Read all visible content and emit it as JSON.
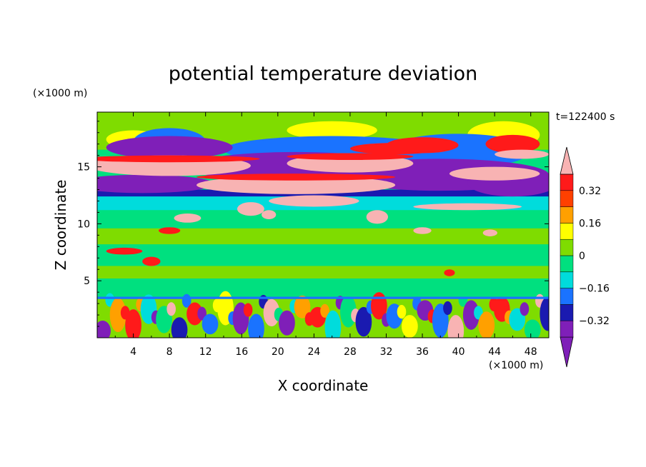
{
  "chart_data": {
    "type": "heatmap",
    "title": "potential temperature deviation",
    "xlabel": "X coordinate",
    "ylabel": "Z coordinate",
    "x_unit": "(×1000 m)",
    "y_unit": "(×1000 m)",
    "time_label": "t=122400 s",
    "xlim": [
      0,
      50
    ],
    "ylim": [
      0,
      19.8
    ],
    "x_ticks": [
      4,
      8,
      12,
      16,
      20,
      24,
      28,
      32,
      36,
      40,
      44,
      48
    ],
    "y_ticks": [
      5,
      10,
      15
    ],
    "colorbar": {
      "levels": [
        -0.4,
        -0.32,
        -0.24,
        -0.16,
        -0.08,
        0,
        0.08,
        0.16,
        0.24,
        0.32,
        0.4
      ],
      "tick_labels": [
        "-0.32",
        "-0.16",
        "0",
        "0.16",
        "0.32"
      ],
      "tick_values": [
        -0.32,
        -0.16,
        0,
        0.16,
        0.32
      ],
      "colors": [
        "#7f1fb8",
        "#7f1fb8",
        "#1a1ab0",
        "#1a73ff",
        "#00dcdc",
        "#00e07f",
        "#7fdc00",
        "#ffff00",
        "#ffa000",
        "#ff4000",
        "#ff1a1a",
        "#f8b3b3"
      ],
      "extend": "both"
    },
    "layers": [
      {
        "z_range": [
          0,
          3.5
        ],
        "pattern": "turbulent",
        "description_values": "alternating -0.4 to 0.4"
      },
      {
        "z_range": [
          3.5,
          12
        ],
        "pattern": "near-zero",
        "value": 0.04
      },
      {
        "z_range": [
          12,
          12.8
        ],
        "pattern": "band",
        "value": -0.08
      },
      {
        "z_range": [
          12.8,
          16.5
        ],
        "pattern": "strong-waves",
        "description_values": "alternating -0.4 to 0.4"
      },
      {
        "z_range": [
          16.5,
          19.8
        ],
        "pattern": "weak",
        "value": 0.06
      }
    ]
  }
}
